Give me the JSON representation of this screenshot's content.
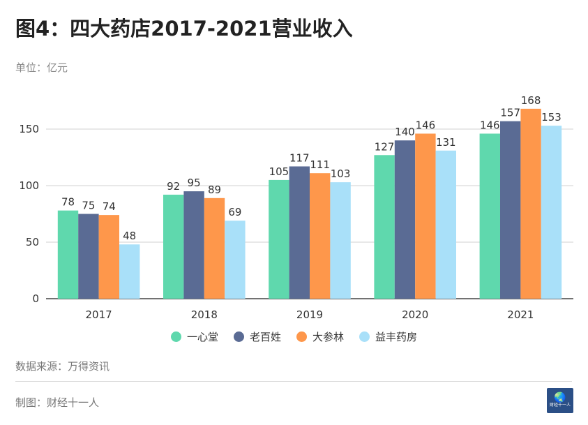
{
  "title": "图4：四大药店2017-2021营业收入",
  "unit": "单位：亿元",
  "source": "数据来源：万得资讯",
  "maker": "制图：财经十一人",
  "logo_text": "财经十一人",
  "chart_data": {
    "type": "bar",
    "categories": [
      "2017",
      "2018",
      "2019",
      "2020",
      "2021"
    ],
    "series": [
      {
        "name": "一心堂",
        "color": "#5fd8ad",
        "values": [
          78,
          92,
          105,
          127,
          146
        ]
      },
      {
        "name": "老百姓",
        "color": "#5a6b94",
        "values": [
          75,
          95,
          117,
          140,
          157
        ]
      },
      {
        "name": "大参林",
        "color": "#fe974b",
        "values": [
          74,
          89,
          111,
          146,
          168
        ]
      },
      {
        "name": "益丰药房",
        "color": "#a9e0f9",
        "values": [
          48,
          69,
          103,
          131,
          153
        ]
      }
    ],
    "yticks": [
      0,
      50,
      100,
      150
    ],
    "ylim": [
      0,
      180
    ],
    "grid": true,
    "legend": "bottom",
    "xlabel": "",
    "ylabel": ""
  }
}
